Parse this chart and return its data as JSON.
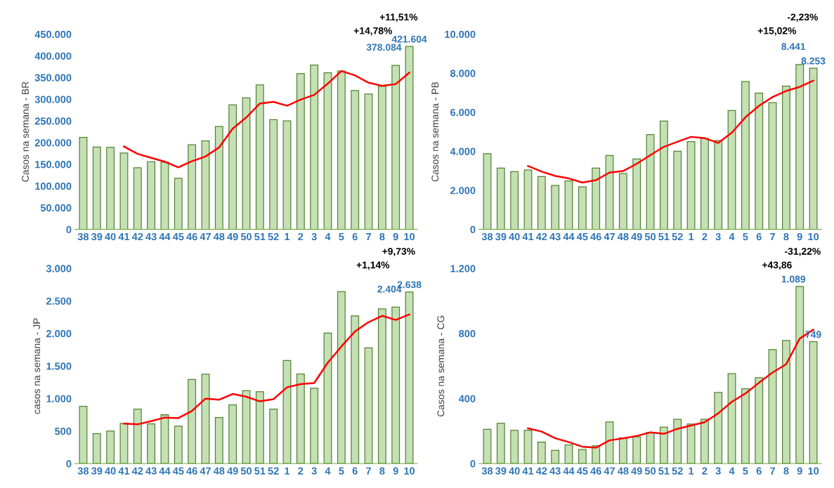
{
  "chart_data": [
    {
      "type": "bar",
      "ylabel": "Casos na semana - BR",
      "categories": [
        "38",
        "39",
        "40",
        "41",
        "42",
        "43",
        "44",
        "45",
        "46",
        "47",
        "48",
        "49",
        "50",
        "51",
        "52",
        "1",
        "2",
        "3",
        "4",
        "5",
        "6",
        "7",
        "8",
        "9",
        "10"
      ],
      "ylim": [
        0,
        450000
      ],
      "yticks": [
        {
          "value": 0,
          "label": "0"
        },
        {
          "value": 50000,
          "label": "50.000"
        },
        {
          "value": 100000,
          "label": "100.000"
        },
        {
          "value": 150000,
          "label": "150.000"
        },
        {
          "value": 200000,
          "label": "200.000"
        },
        {
          "value": 250000,
          "label": "250.000"
        },
        {
          "value": 300000,
          "label": "300.000"
        },
        {
          "value": 350000,
          "label": "350.000"
        },
        {
          "value": 400000,
          "label": "400.000"
        },
        {
          "value": 450000,
          "label": "450.000"
        }
      ],
      "series": [
        {
          "color": "#c5e0b4",
          "values": [
            212000,
            190000,
            189000,
            176000,
            142000,
            156000,
            155000,
            118000,
            195000,
            204000,
            237000,
            287000,
            303000,
            333000,
            253000,
            250000,
            359000,
            379000,
            361000,
            365000,
            320000,
            312000,
            330000,
            378084,
            421604
          ],
          "value_labels": [
            null,
            null,
            null,
            null,
            null,
            null,
            null,
            null,
            null,
            null,
            null,
            null,
            null,
            null,
            null,
            null,
            null,
            null,
            null,
            null,
            null,
            null,
            null,
            "378.084",
            "421.604"
          ]
        },
        {
          "type": "line",
          "color": "#ff0000",
          "values": [
            null,
            null,
            null,
            191000,
            174000,
            165000,
            156000,
            143000,
            157000,
            168000,
            189000,
            232000,
            258000,
            290000,
            294000,
            285000,
            299000,
            310000,
            336000,
            365000,
            355000,
            338000,
            331000,
            335000,
            361000
          ]
        }
      ],
      "annotations": [
        "+14,78%",
        "+11,51%"
      ]
    },
    {
      "type": "bar",
      "ylabel": "Casos na semana - PB",
      "categories": [
        "38",
        "39",
        "40",
        "41",
        "42",
        "43",
        "44",
        "45",
        "46",
        "47",
        "48",
        "49",
        "50",
        "51",
        "52",
        "1",
        "2",
        "3",
        "4",
        "5",
        "6",
        "7",
        "8",
        "9",
        "10"
      ],
      "ylim": [
        0,
        10000
      ],
      "yticks": [
        {
          "value": 0,
          "label": "0"
        },
        {
          "value": 2000,
          "label": "2.000"
        },
        {
          "value": 4000,
          "label": "4.000"
        },
        {
          "value": 6000,
          "label": "6.000"
        },
        {
          "value": 8000,
          "label": "8.000"
        },
        {
          "value": 10000,
          "label": "10.000"
        }
      ],
      "series": [
        {
          "color": "#c5e0b4",
          "values": [
            3880,
            3140,
            2960,
            3040,
            2710,
            2250,
            2480,
            2180,
            3140,
            3790,
            2860,
            3610,
            4860,
            5550,
            4000,
            4500,
            4660,
            4550,
            6090,
            7570,
            6980,
            6490,
            7340,
            8441,
            8253
          ],
          "value_labels": [
            null,
            null,
            null,
            null,
            null,
            null,
            null,
            null,
            null,
            null,
            null,
            null,
            null,
            null,
            null,
            null,
            null,
            null,
            null,
            null,
            null,
            null,
            null,
            "8.441",
            "8.253"
          ]
        },
        {
          "type": "line",
          "color": "#ff0000",
          "values": [
            null,
            null,
            null,
            3250,
            2960,
            2740,
            2610,
            2400,
            2520,
            2910,
            2990,
            3360,
            3800,
            4230,
            4490,
            4740,
            4670,
            4430,
            4950,
            5740,
            6330,
            6780,
            7090,
            7300,
            7620
          ]
        }
      ],
      "annotations": [
        "+15,02%",
        "-2,23%"
      ]
    },
    {
      "type": "bar",
      "ylabel": "casos na semana - JP",
      "categories": [
        "38",
        "39",
        "40",
        "41",
        "42",
        "43",
        "44",
        "45",
        "46",
        "47",
        "48",
        "49",
        "50",
        "51",
        "52",
        "1",
        "2",
        "3",
        "4",
        "5",
        "6",
        "7",
        "8",
        "9",
        "10"
      ],
      "ylim": [
        0,
        3000
      ],
      "yticks": [
        {
          "value": 0,
          "label": "0"
        },
        {
          "value": 500,
          "label": "500"
        },
        {
          "value": 1000,
          "label": "1.000"
        },
        {
          "value": 1500,
          "label": "1.500"
        },
        {
          "value": 2000,
          "label": "2.000"
        },
        {
          "value": 2500,
          "label": "2.500"
        },
        {
          "value": 3000,
          "label": "3.000"
        }
      ],
      "series": [
        {
          "color": "#c5e0b4",
          "values": [
            881,
            459,
            501,
            619,
            839,
            611,
            750,
            577,
            1294,
            1374,
            708,
            902,
            1121,
            1104,
            839,
            1585,
            1378,
            1159,
            2006,
            2642,
            2271,
            1778,
            2377,
            2404,
            2638
          ],
          "value_labels": [
            null,
            null,
            null,
            null,
            null,
            null,
            null,
            null,
            null,
            null,
            null,
            null,
            null,
            null,
            null,
            null,
            null,
            null,
            null,
            null,
            null,
            null,
            null,
            "2.404",
            "2.638"
          ]
        },
        {
          "type": "line",
          "color": "#ff0000",
          "values": [
            null,
            null,
            null,
            615,
            603,
            653,
            708,
            700,
            809,
            999,
            982,
            1070,
            1028,
            957,
            990,
            1172,
            1222,
            1239,
            1551,
            1800,
            2031,
            2174,
            2271,
            2208,
            2292
          ]
        }
      ],
      "annotations": [
        "+1,14%",
        "+9,73%"
      ]
    },
    {
      "type": "bar",
      "ylabel": "Casos na semana - CG",
      "categories": [
        "38",
        "39",
        "40",
        "41",
        "42",
        "43",
        "44",
        "45",
        "46",
        "47",
        "48",
        "49",
        "50",
        "51",
        "52",
        "1",
        "2",
        "3",
        "4",
        "5",
        "6",
        "7",
        "8",
        "9",
        "10"
      ],
      "ylim": [
        0,
        1200
      ],
      "yticks": [
        {
          "value": 0,
          "label": "0"
        },
        {
          "value": 400,
          "label": "400"
        },
        {
          "value": 800,
          "label": "800"
        },
        {
          "value": 1200,
          "label": "1.200"
        }
      ],
      "series": [
        {
          "color": "#c5e0b4",
          "values": [
            211,
            248,
            205,
            205,
            132,
            81,
            115,
            87,
            110,
            256,
            158,
            165,
            192,
            224,
            273,
            243,
            273,
            438,
            553,
            460,
            528,
            701,
            757,
            1089,
            749
          ],
          "value_labels": [
            null,
            null,
            null,
            null,
            null,
            null,
            null,
            null,
            null,
            null,
            null,
            null,
            null,
            null,
            null,
            null,
            null,
            null,
            null,
            null,
            null,
            null,
            null,
            "1.089",
            "749"
          ]
        },
        {
          "type": "line",
          "color": "#ff0000",
          "values": [
            null,
            null,
            null,
            217,
            197,
            156,
            132,
            104,
            98,
            143,
            155,
            170,
            192,
            183,
            214,
            234,
            255,
            309,
            380,
            431,
            497,
            560,
            611,
            769,
            823
          ]
        }
      ],
      "annotations": [
        "+43,86",
        "-31,22%"
      ]
    }
  ]
}
